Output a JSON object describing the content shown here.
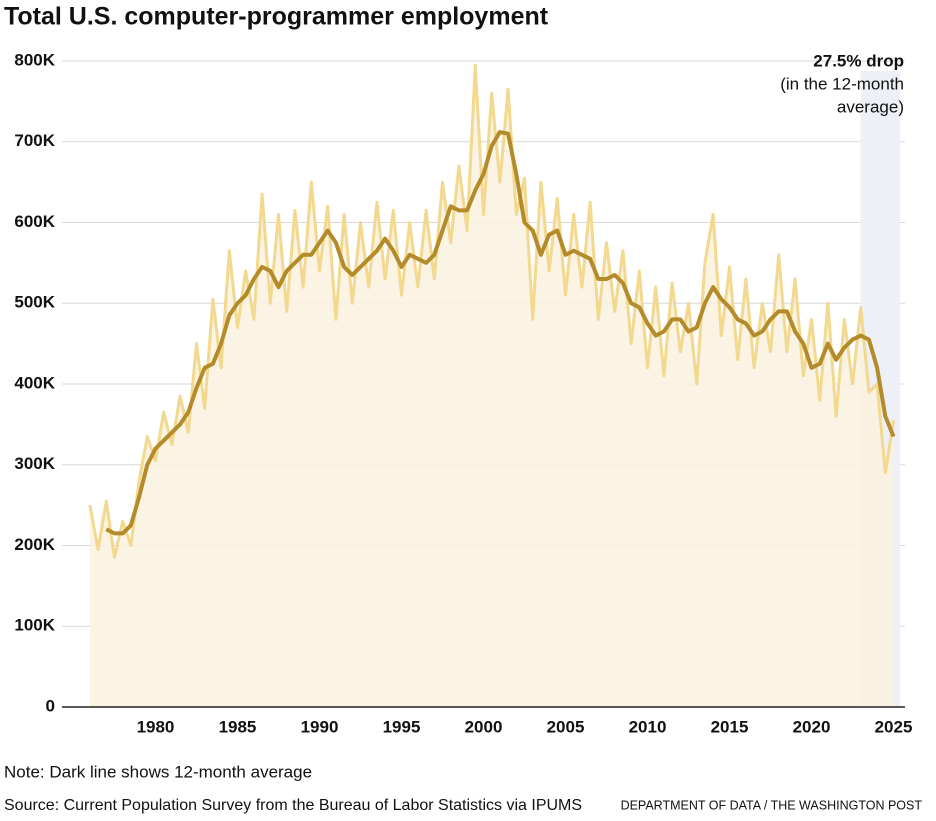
{
  "chart_data": {
    "type": "line",
    "title": "Total U.S. computer-programmer employment",
    "annotation": [
      "27.5% drop",
      "(in the 12-month",
      "average)"
    ],
    "highlight_range": [
      2023,
      2025.4
    ],
    "highlight_color": "#eef0f7",
    "area_color": "#faf1de",
    "note": "Note: Dark line shows 12-month average",
    "source": "Source: Current Population Survey from the Bureau of Labor Statistics via IPUMS",
    "credit": "DEPARTMENT OF DATA / THE WASHINGTON POST",
    "x": [
      1976,
      1976.5,
      1977,
      1977.5,
      1978,
      1978.5,
      1979,
      1979.5,
      1980,
      1980.5,
      1981,
      1981.5,
      1982,
      1982.5,
      1983,
      1983.5,
      1984,
      1984.5,
      1985,
      1985.5,
      1986,
      1986.5,
      1987,
      1987.5,
      1988,
      1988.5,
      1989,
      1989.5,
      1990,
      1990.5,
      1991,
      1991.5,
      1992,
      1992.5,
      1993,
      1993.5,
      1994,
      1994.5,
      1995,
      1995.5,
      1996,
      1996.5,
      1997,
      1997.5,
      1998,
      1998.5,
      1999,
      1999.5,
      2000,
      2000.5,
      2001,
      2001.5,
      2002,
      2002.5,
      2003,
      2003.5,
      2004,
      2004.5,
      2005,
      2005.5,
      2006,
      2006.5,
      2007,
      2007.5,
      2008,
      2008.5,
      2009,
      2009.5,
      2010,
      2010.5,
      2011,
      2011.5,
      2012,
      2012.5,
      2013,
      2013.5,
      2014,
      2014.5,
      2015,
      2015.5,
      2016,
      2016.5,
      2017,
      2017.5,
      2018,
      2018.5,
      2019,
      2019.5,
      2020,
      2020.5,
      2021,
      2021.5,
      2022,
      2022.5,
      2023,
      2023.5,
      2024,
      2024.5,
      2025
    ],
    "series": [
      {
        "color": "#f3d98f",
        "width": 3,
        "values": [
          250000,
          195000,
          255000,
          185000,
          230000,
          200000,
          280000,
          335000,
          305000,
          365000,
          325000,
          385000,
          340000,
          450000,
          370000,
          505000,
          420000,
          565000,
          470000,
          540000,
          480000,
          635000,
          500000,
          610000,
          490000,
          615000,
          520000,
          650000,
          540000,
          620000,
          480000,
          610000,
          500000,
          600000,
          520000,
          625000,
          530000,
          615000,
          510000,
          600000,
          520000,
          615000,
          530000,
          650000,
          575000,
          670000,
          590000,
          795000,
          610000,
          760000,
          650000,
          765000,
          610000,
          655000,
          480000,
          650000,
          540000,
          630000,
          510000,
          610000,
          520000,
          625000,
          480000,
          575000,
          490000,
          565000,
          450000,
          540000,
          420000,
          520000,
          410000,
          525000,
          440000,
          500000,
          400000,
          550000,
          610000,
          460000,
          545000,
          430000,
          530000,
          420000,
          500000,
          440000,
          560000,
          440000,
          530000,
          410000,
          480000,
          380000,
          500000,
          360000,
          480000,
          400000,
          495000,
          390000,
          400000,
          290000,
          355000
        ]
      },
      {
        "color": "#b38b2a",
        "width": 4,
        "values": [
          null,
          null,
          220000,
          215000,
          215000,
          225000,
          260000,
          300000,
          320000,
          330000,
          340000,
          350000,
          365000,
          395000,
          420000,
          425000,
          450000,
          485000,
          500000,
          510000,
          530000,
          545000,
          540000,
          520000,
          540000,
          550000,
          560000,
          560000,
          575000,
          590000,
          575000,
          545000,
          535000,
          545000,
          555000,
          565000,
          580000,
          565000,
          545000,
          560000,
          555000,
          550000,
          560000,
          590000,
          620000,
          615000,
          615000,
          640000,
          660000,
          695000,
          712000,
          710000,
          660000,
          600000,
          590000,
          560000,
          585000,
          590000,
          560000,
          565000,
          560000,
          555000,
          530000,
          530000,
          535000,
          525000,
          500000,
          495000,
          475000,
          460000,
          465000,
          480000,
          480000,
          465000,
          470000,
          500000,
          520000,
          505000,
          495000,
          480000,
          475000,
          460000,
          465000,
          480000,
          490000,
          490000,
          465000,
          450000,
          420000,
          425000,
          450000,
          430000,
          445000,
          455000,
          460000,
          455000,
          420000,
          360000,
          335000
        ]
      }
    ],
    "xlim": [
      1974.3,
      2025.7
    ],
    "xticks": [
      1980,
      1985,
      1990,
      1995,
      2000,
      2005,
      2010,
      2015,
      2020,
      2025
    ],
    "ylim": [
      0,
      800000
    ],
    "yticks": [
      0,
      {
        "value": 100000,
        "label": "100K"
      },
      {
        "value": 200000,
        "label": "200K"
      },
      {
        "value": 300000,
        "label": "300K"
      },
      {
        "value": 400000,
        "label": "400K"
      },
      {
        "value": 500000,
        "label": "500K"
      },
      {
        "value": 600000,
        "label": "600K"
      },
      {
        "value": 700000,
        "label": "700K"
      },
      {
        "value": 800000,
        "label": "800K"
      }
    ],
    "grid": true
  }
}
